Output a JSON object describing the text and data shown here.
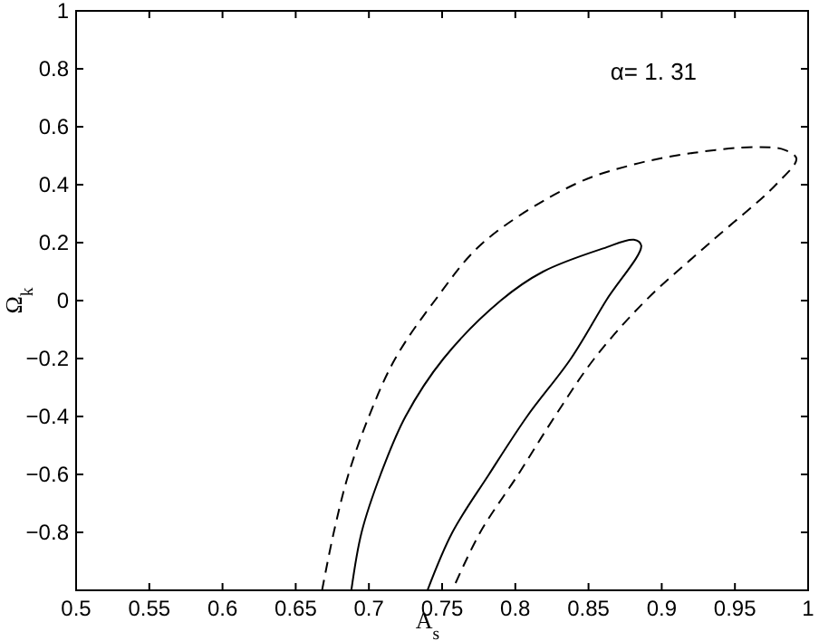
{
  "chart_data": {
    "type": "line",
    "xlabel": "A$_{s}$",
    "ylabel": "Ω$_{k}$",
    "annotations": [
      "α= 1. 31"
    ],
    "xlim": [
      0.5,
      1
    ],
    "ylim": [
      -1,
      1
    ],
    "xticks": [
      0.5,
      0.55,
      0.6,
      0.65,
      0.7,
      0.75,
      0.8,
      0.85,
      0.9,
      0.95,
      1
    ],
    "yticks": [
      {
        "value": -1,
        "label": null
      },
      -0.8,
      -0.6,
      -0.4,
      -0.2,
      0,
      0.2,
      0.4,
      0.6,
      0.8,
      1
    ],
    "marker": "none",
    "series": [
      {
        "color": "#000000",
        "line_style": "dashed",
        "x": [
          0.668,
          0.676,
          0.686,
          0.7,
          0.718,
          0.745,
          0.778,
          0.84,
          0.881,
          0.922,
          0.964,
          0.984,
          0.992,
          0.978,
          0.933,
          0.889,
          0.854,
          0.827,
          0.802,
          0.776,
          0.757
        ],
        "values": [
          -1,
          -0.8,
          -0.6,
          -0.4,
          -0.2,
          0,
          0.2,
          0.4,
          0.47,
          0.51,
          0.53,
          0.52,
          0.49,
          0.4,
          0.2,
          0,
          -0.2,
          -0.4,
          -0.6,
          -0.8,
          -1
        ]
      },
      {
        "color": "#000000",
        "line_style": "solid",
        "x": [
          0.688,
          0.695,
          0.708,
          0.725,
          0.751,
          0.79,
          0.819,
          0.86,
          0.881,
          0.886,
          0.862,
          0.838,
          0.808,
          0.782,
          0.757,
          0.74
        ],
        "values": [
          -1,
          -0.8,
          -0.6,
          -0.4,
          -0.2,
          0,
          0.1,
          0.18,
          0.21,
          0.19,
          0,
          -0.2,
          -0.4,
          -0.6,
          -0.8,
          -1
        ]
      }
    ]
  }
}
